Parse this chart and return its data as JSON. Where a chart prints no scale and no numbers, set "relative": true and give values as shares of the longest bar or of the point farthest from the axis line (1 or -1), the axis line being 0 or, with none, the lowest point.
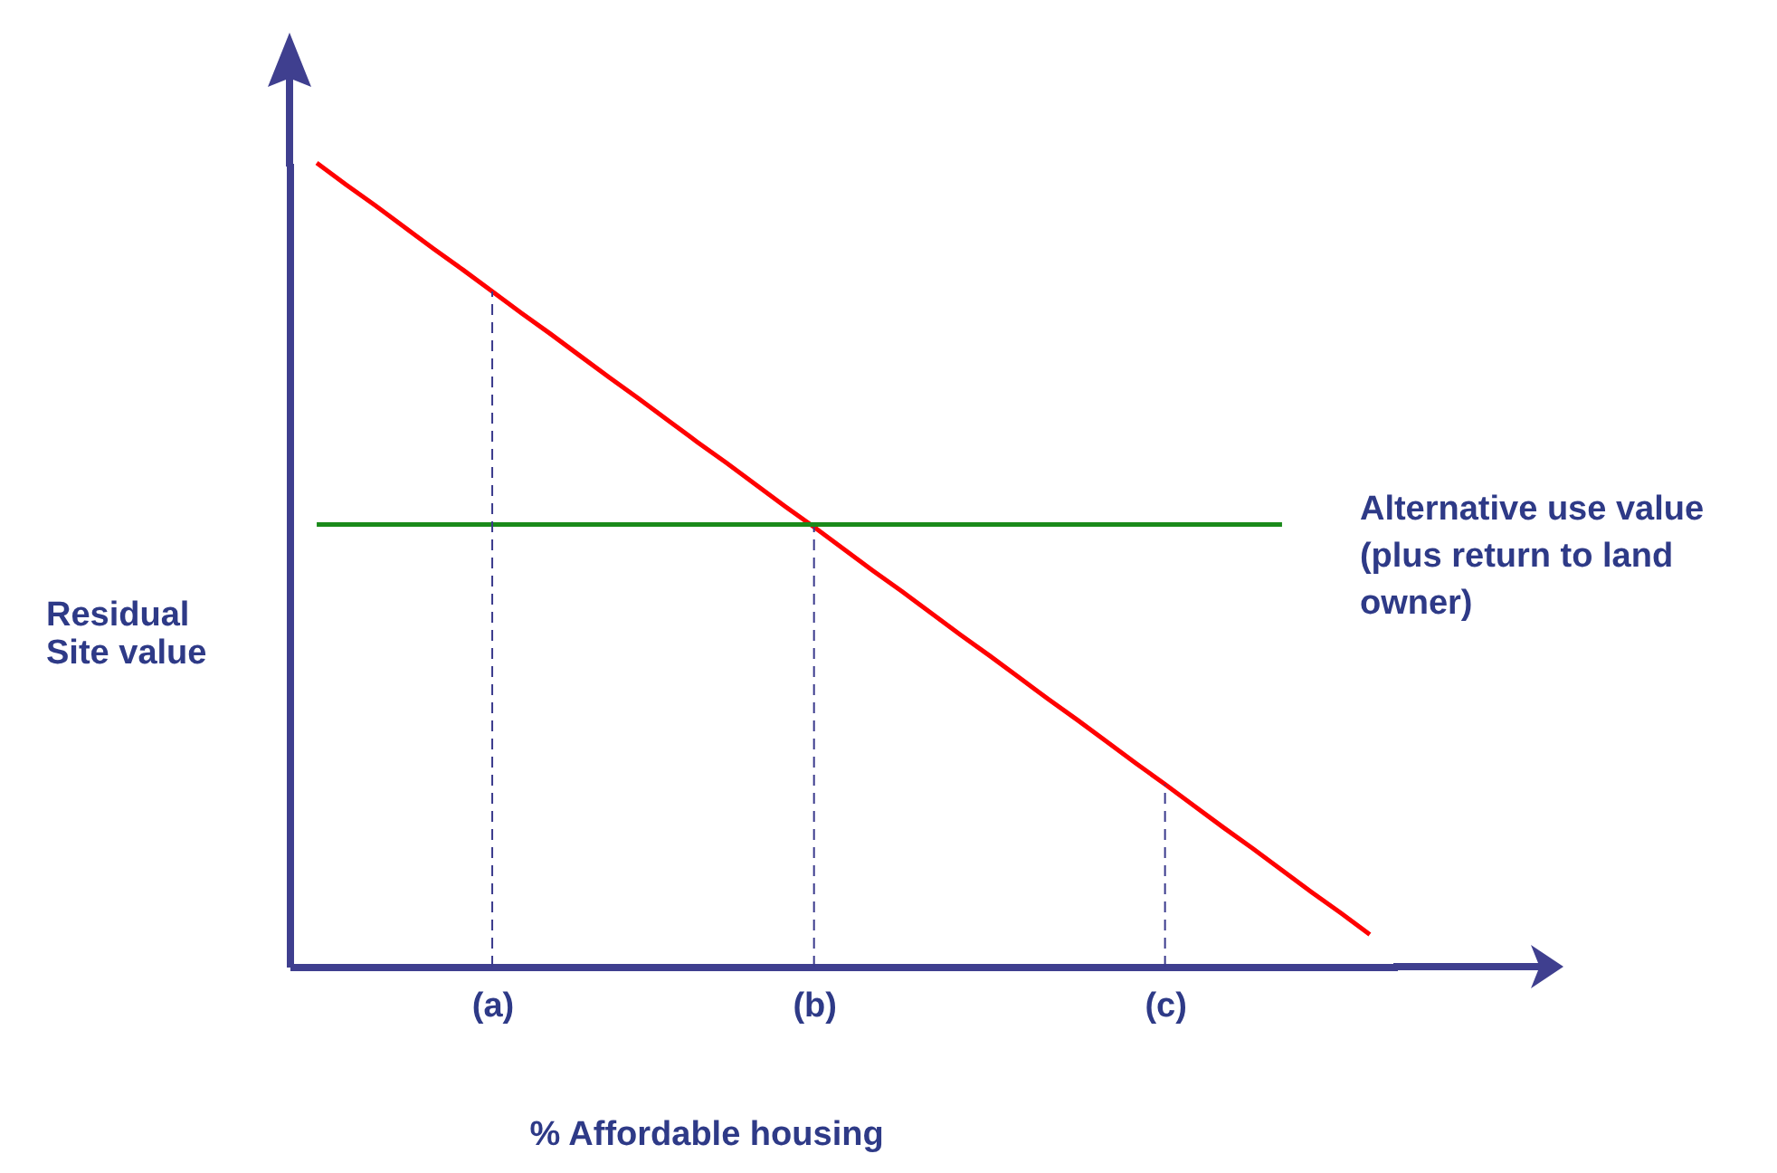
{
  "chart_data": {
    "type": "line",
    "relative": true,
    "xlabel": "% Affordable housing",
    "ylabel": "Residual Site value",
    "categories": [
      null,
      null,
      null,
      null,
      null,
      null,
      "(a)",
      null,
      null,
      null,
      null,
      null,
      null,
      null,
      null,
      null,
      null,
      "(b)",
      null,
      null,
      null,
      null,
      null,
      null,
      null,
      null,
      null,
      null,
      null,
      "(c)",
      null,
      null,
      null,
      null,
      null,
      null,
      null
    ],
    "series": [
      {
        "color": "#ff0000",
        "values": [
          1.0,
          0.973,
          0.947,
          0.92,
          0.893,
          0.867,
          0.84,
          0.813,
          0.787,
          0.76,
          0.733,
          0.707,
          0.68,
          0.653,
          0.627,
          0.6,
          0.573,
          0.547,
          0.52,
          0.493,
          0.467,
          0.44,
          0.413,
          0.387,
          0.36,
          0.333,
          0.307,
          0.28,
          0.253,
          0.227,
          0.2,
          0.173,
          0.147,
          0.12,
          0.093,
          0.067,
          0.04
        ]
      },
      {
        "name": "Alternative use value (plus return to land owner)",
        "color": "#1a8a1a",
        "values": [
          0.55,
          0.55,
          0.55,
          0.55,
          0.55,
          0.55,
          0.55,
          0.55,
          0.55,
          0.55,
          0.55,
          0.55,
          0.55,
          0.55,
          0.55,
          0.55,
          0.55,
          0.55,
          0.55,
          0.55,
          0.55,
          0.55,
          0.55,
          0.55,
          0.55,
          0.55,
          0.55,
          0.55,
          0.55,
          0.55,
          0.55,
          0.55,
          0.55,
          0.55,
          null,
          null,
          null
        ]
      }
    ],
    "ref_lines": [
      {
        "axis": "x",
        "value": "(a)",
        "color": "#3a3a8c",
        "line_style": "dashed"
      },
      {
        "axis": "x",
        "value": "(b)",
        "color": "#3a3a8c",
        "line_style": "dashed"
      },
      {
        "axis": "x",
        "value": "(c)",
        "color": "#3a3a8c",
        "line_style": "dashed"
      }
    ]
  }
}
